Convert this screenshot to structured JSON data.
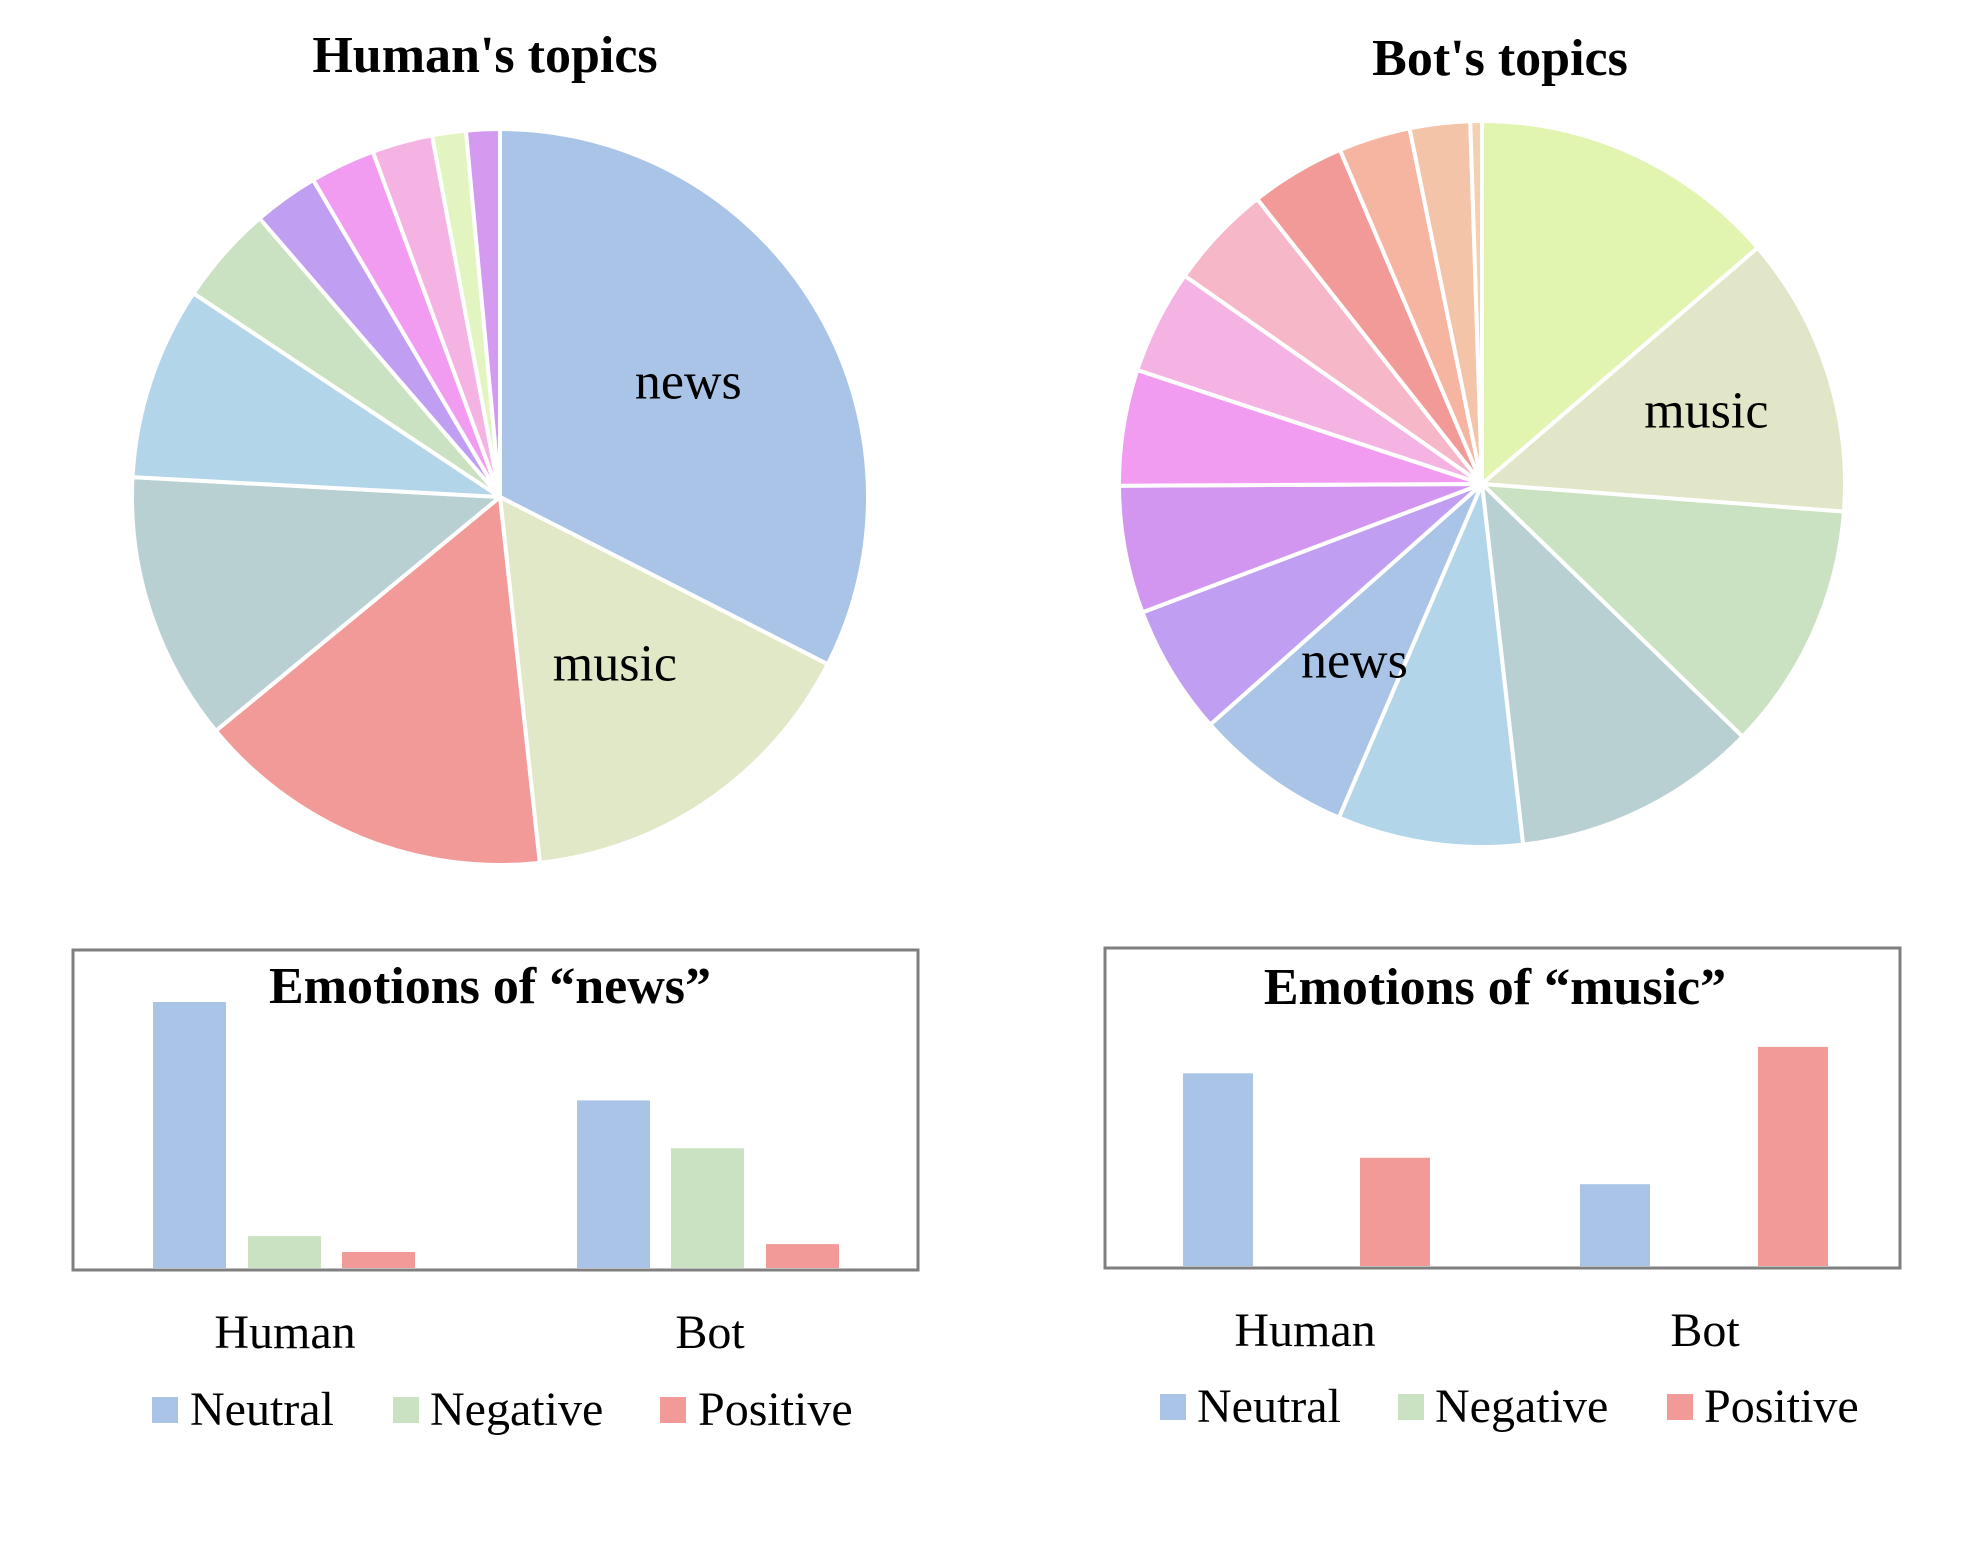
{
  "colors": {
    "neutral": "#a9c4e7",
    "negative": "#cbe2c2",
    "positive": "#f19a98",
    "box_border": "#7f7f7f"
  },
  "chart_data": [
    {
      "type": "pie",
      "title": "Human's topics",
      "start_angle_deg": 0,
      "direction": "clockwise",
      "slices": [
        {
          "label": "news",
          "value": 33,
          "color": "#a9c4e7"
        },
        {
          "label": "music",
          "value": 16,
          "color": "#e1e8c8"
        },
        {
          "label": "",
          "value": 16,
          "color": "#f19a98"
        },
        {
          "label": "",
          "value": 12,
          "color": "#b9d0d3"
        },
        {
          "label": "",
          "value": 8.6,
          "color": "#b3d5ea"
        },
        {
          "label": "",
          "value": 4.4,
          "color": "#cbe2c2"
        },
        {
          "label": "",
          "value": 2.9,
          "color": "#c09ff2"
        },
        {
          "label": "",
          "value": 2.9,
          "color": "#f29cf1"
        },
        {
          "label": "",
          "value": 2.7,
          "color": "#f5b3e3"
        },
        {
          "label": "",
          "value": 1.5,
          "color": "#e2f4c0"
        },
        {
          "label": "",
          "value": 1.5,
          "color": "#d39af0"
        }
      ]
    },
    {
      "type": "pie",
      "title": "Bot's topics",
      "start_angle_deg": 0,
      "direction": "clockwise",
      "slices": [
        {
          "label": "",
          "value": 13.3,
          "color": "#e1f5b1"
        },
        {
          "label": "music",
          "value": 12.1,
          "color": "#e1e6c8"
        },
        {
          "label": "",
          "value": 10.7,
          "color": "#cbe2c2"
        },
        {
          "label": "",
          "value": 10.6,
          "color": "#b9d0d3"
        },
        {
          "label": "",
          "value": 8.0,
          "color": "#b3d5ea"
        },
        {
          "label": "news",
          "value": 6.8,
          "color": "#a9c4e7"
        },
        {
          "label": "",
          "value": 5.6,
          "color": "#c09ff2"
        },
        {
          "label": "",
          "value": 5.5,
          "color": "#d396f0"
        },
        {
          "label": "",
          "value": 5.0,
          "color": "#f29cf1"
        },
        {
          "label": "",
          "value": 4.5,
          "color": "#f5b3e3"
        },
        {
          "label": "",
          "value": 4.5,
          "color": "#f6b8c8"
        },
        {
          "label": "",
          "value": 4.1,
          "color": "#f19a98"
        },
        {
          "label": "",
          "value": 3.1,
          "color": "#f5b5a1"
        },
        {
          "label": "",
          "value": 2.6,
          "color": "#f4c4a8"
        },
        {
          "label": "",
          "value": 0.5,
          "color": "#f4d0b0"
        }
      ]
    },
    {
      "type": "bar",
      "title": "Emotions of “news”",
      "categories": [
        "Human",
        "Bot"
      ],
      "series": [
        {
          "name": "Neutral",
          "values": [
            100,
            63
          ],
          "color": "#a9c4e7"
        },
        {
          "name": "Negative",
          "values": [
            12,
            45
          ],
          "color": "#cbe2c2"
        },
        {
          "name": "Positive",
          "values": [
            6,
            9
          ],
          "color": "#f19a98"
        }
      ],
      "ylim": [
        0,
        100
      ],
      "legend": "bottom"
    },
    {
      "type": "bar",
      "title": "Emotions of “music”",
      "categories": [
        "Human",
        "Bot"
      ],
      "series": [
        {
          "name": "Neutral",
          "values": [
            73,
            31
          ],
          "color": "#a9c4e7"
        },
        {
          "name": "Negative",
          "values": [
            0,
            0
          ],
          "color": "#cbe2c2"
        },
        {
          "name": "Positive",
          "values": [
            41,
            83
          ],
          "color": "#f19a98"
        }
      ],
      "ylim": [
        0,
        100
      ],
      "legend": "bottom"
    }
  ]
}
